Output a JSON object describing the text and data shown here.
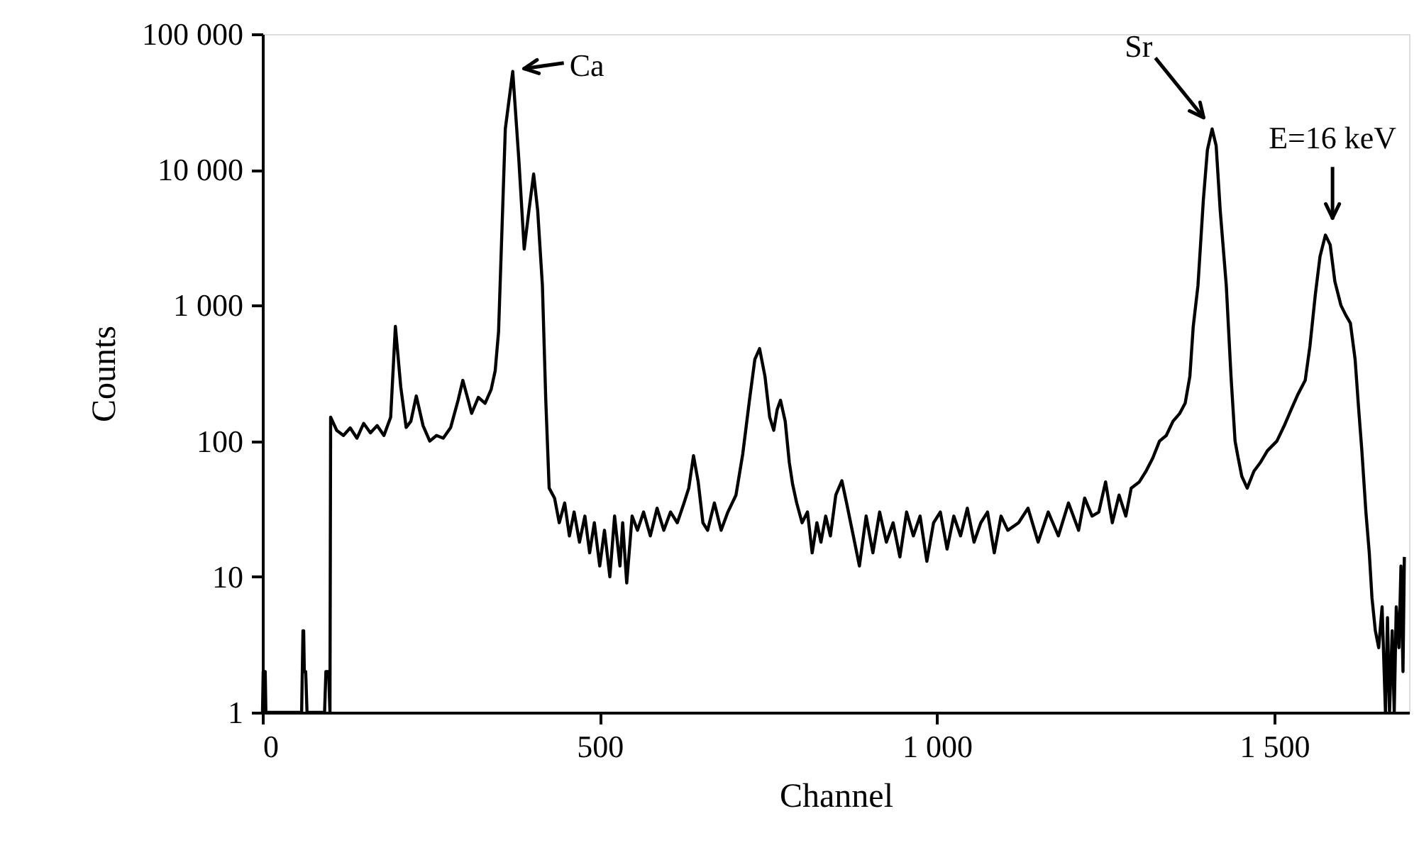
{
  "chart_data": {
    "type": "line",
    "xlabel": "Channel",
    "ylabel": "Counts",
    "log": "y",
    "grid": false,
    "marker": "none",
    "line_style": "solid",
    "xlim": [
      0,
      1700
    ],
    "ylim": [
      1,
      100000
    ],
    "xticks": [
      0,
      500,
      {
        "value": 1000,
        "label": "1 000"
      },
      {
        "value": 1500,
        "label": "1 500"
      }
    ],
    "yticks": [
      1,
      10,
      100,
      {
        "value": 1000,
        "label": "1 000"
      },
      {
        "value": 10000,
        "label": "10 000"
      },
      {
        "value": 100000,
        "label": "100 000"
      }
    ],
    "annotations": [
      {
        "text": "Ca",
        "x": 371,
        "y": 53000
      },
      {
        "text": "Sr",
        "x": 1408,
        "y": 20000
      },
      {
        "text": "E=16 keV",
        "x": 1576,
        "y": 3300
      }
    ],
    "series": [
      {
        "color": "#000000",
        "x": [
          0,
          1,
          4,
          5,
          58,
          60,
          61,
          62,
          64,
          66,
          92,
          94,
          98,
          100,
          101,
          110,
          120,
          130,
          140,
          150,
          160,
          170,
          180,
          190,
          197,
          205,
          213,
          220,
          228,
          238,
          248,
          258,
          268,
          279,
          290,
          297,
          305,
          310,
          320,
          330,
          339,
          345,
          350,
          360,
          371,
          380,
          388,
          395,
          402,
          408,
          415,
          420,
          425,
          433,
          440,
          448,
          455,
          462,
          470,
          478,
          485,
          492,
          500,
          507,
          515,
          522,
          530,
          534,
          540,
          548,
          556,
          565,
          575,
          585,
          595,
          605,
          615,
          625,
          632,
          639,
          646,
          653,
          660,
          670,
          680,
          690,
          702,
          712,
          722,
          730,
          737,
          745,
          752,
          758,
          763,
          768,
          775,
          781,
          786,
          792,
          800,
          808,
          815,
          822,
          828,
          835,
          842,
          850,
          859,
          866,
          872,
          876,
          885,
          895,
          905,
          915,
          925,
          935,
          945,
          955,
          965,
          975,
          985,
          995,
          1005,
          1015,
          1025,
          1035,
          1045,
          1055,
          1065,
          1075,
          1085,
          1095,
          1105,
          1121,
          1135,
          1150,
          1165,
          1180,
          1195,
          1210,
          1219,
          1230,
          1240,
          1250,
          1260,
          1270,
          1280,
          1288,
          1300,
          1310,
          1320,
          1330,
          1340,
          1350,
          1360,
          1368,
          1375,
          1380,
          1387,
          1395,
          1401,
          1408,
          1414,
          1420,
          1429,
          1436,
          1442,
          1446,
          1452,
          1460,
          1470,
          1480,
          1490,
          1504,
          1515,
          1525,
          1535,
          1546,
          1553,
          1561,
          1568,
          1576,
          1583,
          1590,
          1599,
          1606,
          1613,
          1620,
          1625,
          1630,
          1636,
          1641,
          1645,
          1650,
          1655,
          1660,
          1665,
          1668,
          1671,
          1675,
          1678,
          1681,
          1685,
          1688,
          1691,
          1693
        ],
        "values": [
          1,
          2,
          2,
          1,
          1,
          4,
          4,
          2,
          2,
          1,
          1,
          2,
          2,
          1,
          150,
          120,
          110,
          125,
          105,
          135,
          115,
          130,
          110,
          150,
          700,
          250,
          126,
          140,
          215,
          130,
          100,
          110,
          105,
          126,
          200,
          280,
          200,
          160,
          210,
          190,
          240,
          330,
          640,
          20000,
          53000,
          12000,
          2600,
          5000,
          9300,
          5000,
          1400,
          200,
          45,
          38,
          25,
          35,
          20,
          30,
          18,
          28,
          15,
          25,
          12,
          22,
          10,
          28,
          12,
          25,
          9,
          28,
          22,
          30,
          20,
          32,
          22,
          30,
          25,
          35,
          45,
          78,
          50,
          25,
          22,
          35,
          22,
          30,
          40,
          80,
          200,
          400,
          480,
          300,
          150,
          120,
          170,
          200,
          140,
          70,
          48,
          35,
          25,
          30,
          15,
          25,
          18,
          28,
          20,
          40,
          51,
          35,
          25,
          20,
          12,
          28,
          15,
          30,
          18,
          25,
          14,
          30,
          20,
          28,
          13,
          25,
          30,
          16,
          28,
          20,
          32,
          18,
          25,
          30,
          15,
          28,
          22,
          25,
          32,
          18,
          30,
          20,
          35,
          22,
          38,
          28,
          30,
          50,
          25,
          40,
          28,
          45,
          50,
          60,
          75,
          100,
          110,
          140,
          160,
          190,
          300,
          700,
          1400,
          6000,
          14000,
          20000,
          15000,
          5000,
          1400,
          300,
          100,
          78,
          55,
          45,
          60,
          70,
          85,
          100,
          130,
          170,
          220,
          280,
          500,
          1200,
          2300,
          3300,
          2800,
          1500,
          1000,
          850,
          740,
          400,
          180,
          85,
          30,
          15,
          7,
          4,
          3,
          6,
          1,
          5,
          1,
          4,
          1,
          6,
          3,
          12,
          2,
          14
        ]
      }
    ]
  }
}
